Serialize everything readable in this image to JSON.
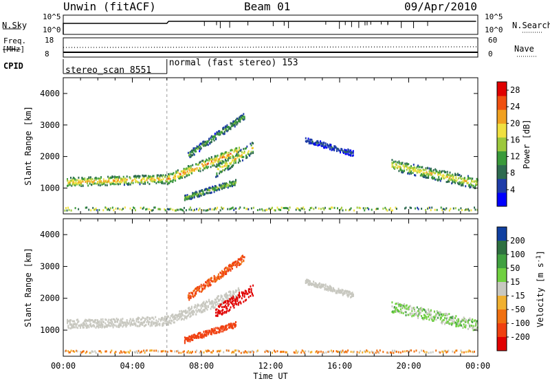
{
  "header": {
    "station": "Unwin (fitACF)",
    "beam": "Beam 01",
    "date": "09/Apr/2010"
  },
  "top_panels": {
    "nsky_label": "N.Sky",
    "nsearch_label": "N.Search",
    "freq_label_line1": "Freq.",
    "freq_label_line2": "[MHz]",
    "nave_label": "Nave",
    "cpid_label": "CPID",
    "noise_ticks": [
      "10^5",
      "10^0"
    ],
    "freq_ticks": [
      "18",
      "8"
    ],
    "nave_ticks": [
      "60",
      "0"
    ],
    "cpid_segments": [
      {
        "label": "stereo_scan 8551",
        "start_hour": 0,
        "end_hour": 6
      },
      {
        "label": "normal (fast stereo) 153",
        "start_hour": 6,
        "end_hour": 24
      }
    ]
  },
  "chart_data": [
    {
      "type": "heatmap",
      "panel": "power",
      "ylabel": "Slant Range [km]",
      "xlabel": "",
      "ylim": [
        180,
        4500
      ],
      "xlim_hours": [
        0,
        24
      ],
      "y_ticks": [
        1000,
        2000,
        3000,
        4000
      ],
      "colorbar": {
        "label": "Power [dB]",
        "ticks": [
          4,
          8,
          12,
          16,
          20,
          24,
          28
        ],
        "range": [
          0,
          30
        ],
        "colors": [
          "#0000ff",
          "#1e3ca8",
          "#2e6b50",
          "#3a9a3a",
          "#9cc83c",
          "#f0e040",
          "#f0a020",
          "#f05010",
          "#e00000"
        ]
      },
      "bands": [
        {
          "start": 0.2,
          "end": 6.0,
          "r0": 1150,
          "r1": 1250,
          "width": 280,
          "level": 20
        },
        {
          "start": 6.0,
          "end": 10.2,
          "r0": 1250,
          "r1": 2150,
          "width": 320,
          "level": 22
        },
        {
          "start": 7.2,
          "end": 10.5,
          "r0": 2000,
          "r1": 3250,
          "width": 220,
          "level": 12
        },
        {
          "start": 8.8,
          "end": 11.0,
          "r0": 1500,
          "r1": 2250,
          "width": 380,
          "level": 18
        },
        {
          "start": 7.0,
          "end": 10.0,
          "r0": 650,
          "r1": 1150,
          "width": 180,
          "level": 14
        },
        {
          "start": 14.0,
          "end": 16.8,
          "r0": 2500,
          "r1": 2050,
          "width": 170,
          "level": 6
        },
        {
          "start": 19.0,
          "end": 24.0,
          "r0": 1700,
          "r1": 1100,
          "width": 350,
          "level": 18
        }
      ],
      "ground_band": {
        "start": 0,
        "end": 24,
        "r0": 250,
        "r1": 350,
        "level": 6
      }
    },
    {
      "type": "heatmap",
      "panel": "velocity",
      "ylabel": "Slant Range [km]",
      "xlabel": "Time UT",
      "ylim": [
        180,
        4500
      ],
      "xlim_hours": [
        0,
        24
      ],
      "y_ticks": [
        1000,
        2000,
        3000,
        4000
      ],
      "x_tick_labels": [
        "00:00",
        "04:00",
        "08:00",
        "12:00",
        "16:00",
        "20:00",
        "00:00"
      ],
      "colorbar": {
        "label": "Velocity [m s-1]",
        "ticks": [
          200,
          100,
          50,
          15,
          -15,
          -50,
          -100,
          -200
        ],
        "colors": [
          "#1040a0",
          "#2e7040",
          "#40a040",
          "#70d040",
          "#c8c8c0",
          "#f0b030",
          "#f07010",
          "#f04010",
          "#e00000"
        ]
      },
      "bands": [
        {
          "start": 0.2,
          "end": 6.0,
          "r0": 1150,
          "r1": 1250,
          "width": 280,
          "velocity": 0
        },
        {
          "start": 6.0,
          "end": 10.2,
          "r0": 1250,
          "r1": 2150,
          "width": 320,
          "velocity": 0
        },
        {
          "start": 7.2,
          "end": 10.5,
          "r0": 2000,
          "r1": 3250,
          "width": 220,
          "velocity": -80
        },
        {
          "start": 8.8,
          "end": 11.0,
          "r0": 1500,
          "r1": 2250,
          "width": 380,
          "velocity": -200
        },
        {
          "start": 7.0,
          "end": 10.0,
          "r0": 650,
          "r1": 1150,
          "width": 180,
          "velocity": -100
        },
        {
          "start": 14.0,
          "end": 16.8,
          "r0": 2500,
          "r1": 2050,
          "width": 170,
          "velocity": 0
        },
        {
          "start": 19.0,
          "end": 24.0,
          "r0": 1700,
          "r1": 1100,
          "width": 350,
          "velocity": 20
        }
      ],
      "ground_band": {
        "start": 0,
        "end": 24,
        "r0": 250,
        "r1": 330,
        "velocity": -30
      }
    }
  ]
}
